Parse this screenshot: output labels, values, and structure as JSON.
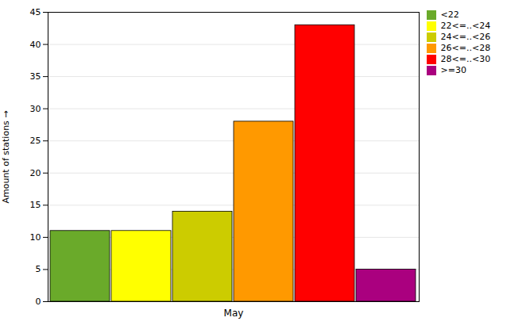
{
  "chart_data": {
    "type": "bar",
    "categories": [
      "<22",
      "22<=..<24",
      "24<=..<26",
      "26<=..<28",
      "28<=..<30",
      ">=30"
    ],
    "values": [
      11,
      11,
      14,
      28,
      43,
      5
    ],
    "colors": [
      "#6aaa2a",
      "#ffff00",
      "#cccc00",
      "#ff9900",
      "#ff0000",
      "#aa007f"
    ],
    "xlabel": "May",
    "ylabel": "Amount of stations",
    "ylim": [
      0,
      45
    ],
    "yticks": [
      0,
      5,
      10,
      15,
      20,
      25,
      30,
      35,
      40,
      45
    ],
    "grid": true,
    "legend": "upper right"
  }
}
